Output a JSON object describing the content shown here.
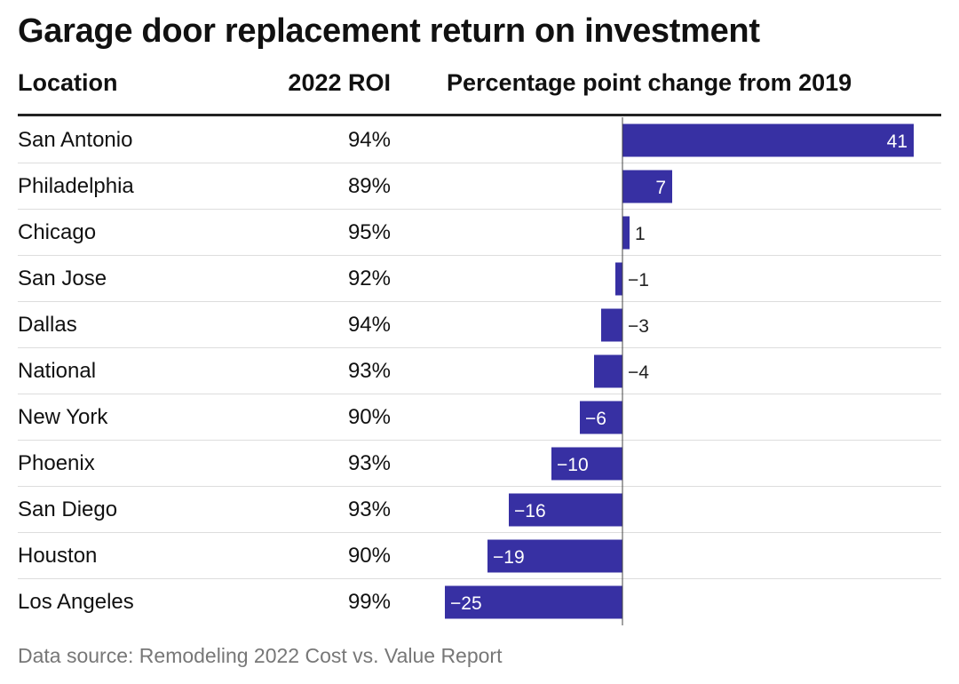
{
  "title": "Garage door replacement return on investment",
  "columns": {
    "location": "Location",
    "roi": "2022 ROI",
    "change": "Percentage point change from 2019"
  },
  "source": "Data source: Remodeling 2022 Cost vs. Value Report",
  "colors": {
    "bar": "#3730a3",
    "label_inside": "#ffffff",
    "label_outside": "#222222",
    "grid": "#dddddd",
    "axis": "#444444"
  },
  "chart_data": {
    "type": "bar",
    "orientation": "horizontal",
    "title": "Garage door replacement return on investment",
    "categories": [
      "San Antonio",
      "Philadelphia",
      "Chicago",
      "San Jose",
      "Dallas",
      "National",
      "New York",
      "Phoenix",
      "San Diego",
      "Houston",
      "Los Angeles"
    ],
    "roi_2022": [
      "94%",
      "89%",
      "95%",
      "92%",
      "94%",
      "93%",
      "90%",
      "93%",
      "93%",
      "90%",
      "99%"
    ],
    "values": [
      41,
      7,
      1,
      -1,
      -3,
      -4,
      -6,
      -10,
      -16,
      -19,
      -25
    ],
    "value_labels": [
      "41",
      "7",
      "1",
      "−1",
      "−3",
      "−4",
      "−6",
      "−10",
      "−16",
      "−19",
      "−25"
    ],
    "xlim": [
      -25,
      41
    ],
    "xlabel": "Percentage point change from 2019",
    "ylabel": "",
    "grid": false
  }
}
